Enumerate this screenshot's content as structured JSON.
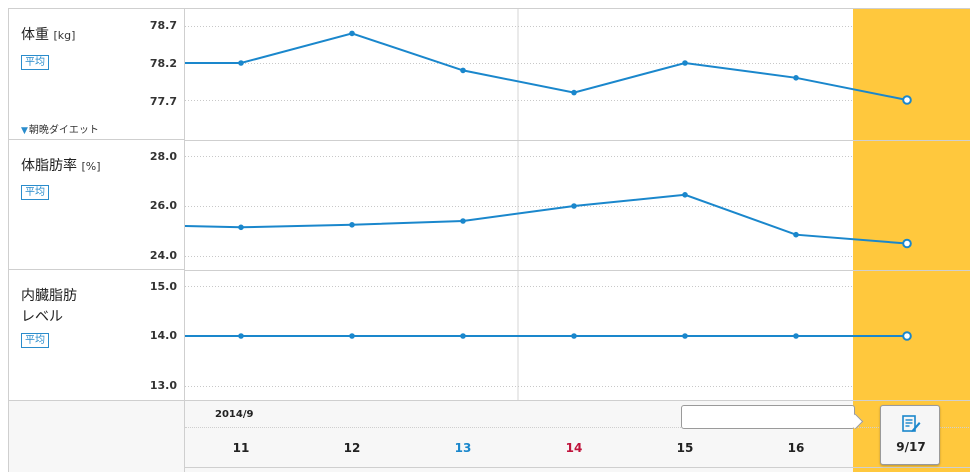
{
  "colors": {
    "line": "#1a87cc",
    "highlight": "#ffc83d",
    "day_saturday": "#1a87cc",
    "day_sunday": "#c0143c",
    "day_default": "#222222"
  },
  "panels": [
    {
      "title": "体重",
      "unit": "[kg]",
      "avg_label": "平均",
      "menu": "朝晩ダイエット",
      "menu_icon": "triangle-down-icon"
    },
    {
      "title": "体脂肪率",
      "unit": "[%]",
      "avg_label": "平均"
    },
    {
      "title": "内臓脂肪\nレベル",
      "unit": "",
      "avg_label": "平均"
    }
  ],
  "axis": {
    "month_label": "2014/9",
    "days": [
      {
        "label": "11",
        "type": "default"
      },
      {
        "label": "12",
        "type": "default"
      },
      {
        "label": "13",
        "type": "saturday"
      },
      {
        "label": "14",
        "type": "sunday"
      },
      {
        "label": "15",
        "type": "default"
      },
      {
        "label": "16",
        "type": "default"
      }
    ],
    "today_label": "9/17",
    "today_icon": "edit-note-icon",
    "note_placeholder": ""
  },
  "chart_data": [
    {
      "type": "line",
      "title": "体重",
      "ylabel": "[kg]",
      "x": [
        "9/10",
        "9/11",
        "9/12",
        "9/13",
        "9/14",
        "9/15",
        "9/16",
        "9/17"
      ],
      "values": [
        78.2,
        78.2,
        78.6,
        78.1,
        77.8,
        78.2,
        78.0,
        77.7
      ],
      "ylim": [
        77.7,
        78.7
      ],
      "yticks": [
        "78.7",
        "78.2",
        "77.7"
      ],
      "grid": true
    },
    {
      "type": "line",
      "title": "体脂肪率",
      "ylabel": "[%]",
      "x": [
        "9/10",
        "9/11",
        "9/12",
        "9/13",
        "9/14",
        "9/15",
        "9/16",
        "9/17"
      ],
      "values": [
        25.2,
        25.15,
        25.25,
        25.4,
        26.0,
        26.45,
        24.85,
        24.5
      ],
      "ylim": [
        24.0,
        28.0
      ],
      "yticks": [
        "28.0",
        "26.0",
        "24.0"
      ],
      "grid": true
    },
    {
      "type": "line",
      "title": "内臓脂肪レベル",
      "ylabel": "",
      "x": [
        "9/10",
        "9/11",
        "9/12",
        "9/13",
        "9/14",
        "9/15",
        "9/16",
        "9/17"
      ],
      "values": [
        14.0,
        14.0,
        14.0,
        14.0,
        14.0,
        14.0,
        14.0,
        14.0
      ],
      "ylim": [
        13.0,
        15.0
      ],
      "yticks": [
        "15.0",
        "14.0",
        "13.0"
      ],
      "grid": true
    }
  ]
}
